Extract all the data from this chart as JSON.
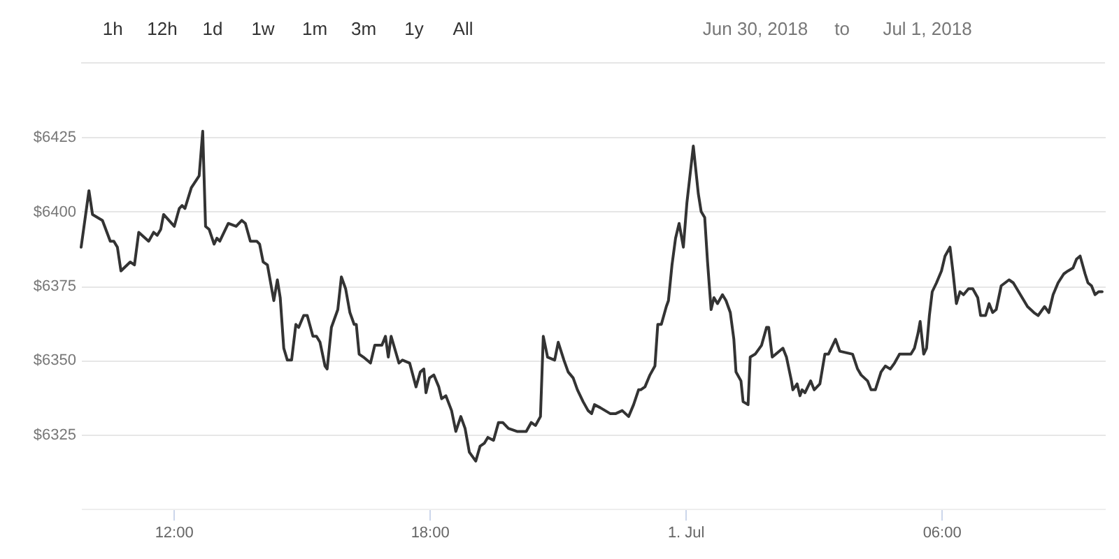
{
  "chart_data": {
    "type": "line",
    "annotations": [
      "1h",
      "12h",
      "1d",
      "1w",
      "1m",
      "3m",
      "1y",
      "All",
      "Jun 30, 2018",
      "to",
      "Jul 1, 2018"
    ],
    "x": [
      "2018-06-30T09:50",
      "2018-06-30T10:01",
      "2018-06-30T10:06",
      "2018-06-30T10:20",
      "2018-06-30T10:31",
      "2018-06-30T10:36",
      "2018-06-30T10:41",
      "2018-06-30T10:46",
      "2018-06-30T10:59",
      "2018-06-30T11:05",
      "2018-06-30T11:11",
      "2018-06-30T11:25",
      "2018-06-30T11:32",
      "2018-06-30T11:37",
      "2018-06-30T11:42",
      "2018-06-30T11:46",
      "2018-06-30T12:01",
      "2018-06-30T12:08",
      "2018-06-30T12:12",
      "2018-06-30T12:16",
      "2018-06-30T12:25",
      "2018-06-30T12:36",
      "2018-06-30T12:41",
      "2018-06-30T12:45",
      "2018-06-30T12:50",
      "2018-06-30T12:57",
      "2018-06-30T13:01",
      "2018-06-30T13:05",
      "2018-06-30T13:17",
      "2018-06-30T13:28",
      "2018-06-30T13:36",
      "2018-06-30T13:41",
      "2018-06-30T13:48",
      "2018-06-30T13:57",
      "2018-06-30T14:01",
      "2018-06-30T14:06",
      "2018-06-30T14:12",
      "2018-06-30T14:21",
      "2018-06-30T14:26",
      "2018-06-30T14:30",
      "2018-06-30T14:35",
      "2018-06-30T14:40",
      "2018-06-30T14:46",
      "2018-06-30T14:52",
      "2018-06-30T14:56",
      "2018-06-30T15:03",
      "2018-06-30T15:08",
      "2018-06-30T15:16",
      "2018-06-30T15:21",
      "2018-06-30T15:26",
      "2018-06-30T15:33",
      "2018-06-30T15:36",
      "2018-06-30T15:42",
      "2018-06-30T15:51",
      "2018-06-30T15:56",
      "2018-06-30T16:02",
      "2018-06-30T16:08",
      "2018-06-30T16:14",
      "2018-06-30T16:17",
      "2018-06-30T16:21",
      "2018-06-30T16:27",
      "2018-06-30T16:37",
      "2018-06-30T16:43",
      "2018-06-30T16:53",
      "2018-06-30T16:58",
      "2018-06-30T17:02",
      "2018-06-30T17:06",
      "2018-06-30T17:17",
      "2018-06-30T17:22",
      "2018-06-30T17:32",
      "2018-06-30T17:41",
      "2018-06-30T17:47",
      "2018-06-30T17:52",
      "2018-06-30T17:55",
      "2018-06-30T18:00",
      "2018-06-30T18:06",
      "2018-06-30T18:13",
      "2018-06-30T18:17",
      "2018-06-30T18:23",
      "2018-06-30T18:31",
      "2018-06-30T18:37",
      "2018-06-30T18:44",
      "2018-06-30T18:50",
      "2018-06-30T18:56",
      "2018-06-30T19:05",
      "2018-06-30T19:11",
      "2018-06-30T19:17",
      "2018-06-30T19:22",
      "2018-06-30T19:30",
      "2018-06-30T19:37",
      "2018-06-30T19:43",
      "2018-06-30T19:51",
      "2018-06-30T20:03",
      "2018-06-30T20:16",
      "2018-06-30T20:23",
      "2018-06-30T20:29",
      "2018-06-30T20:36",
      "2018-06-30T20:40",
      "2018-06-30T20:46",
      "2018-06-30T20:56",
      "2018-06-30T21:01",
      "2018-06-30T21:09",
      "2018-06-30T21:15",
      "2018-06-30T21:22",
      "2018-06-30T21:28",
      "2018-06-30T21:36",
      "2018-06-30T21:43",
      "2018-06-30T21:48",
      "2018-06-30T21:52",
      "2018-06-30T22:00",
      "2018-06-30T22:14",
      "2018-06-30T22:22",
      "2018-06-30T22:31",
      "2018-06-30T22:40",
      "2018-06-30T22:47",
      "2018-06-30T22:54",
      "2018-06-30T22:57",
      "2018-06-30T23:03",
      "2018-06-30T23:10",
      "2018-06-30T23:17",
      "2018-06-30T23:21",
      "2018-06-30T23:26",
      "2018-06-30T23:33",
      "2018-06-30T23:36",
      "2018-06-30T23:41",
      "2018-06-30T23:46",
      "2018-06-30T23:51",
      "2018-06-30T23:57",
      "2018-07-01T00:02",
      "2018-07-01T00:11",
      "2018-07-01T00:18",
      "2018-07-01T00:22",
      "2018-07-01T00:27",
      "2018-07-01T00:31",
      "2018-07-01T00:36",
      "2018-07-01T00:40",
      "2018-07-01T00:45",
      "2018-07-01T00:52",
      "2018-07-01T00:57",
      "2018-07-01T01:03",
      "2018-07-01T01:08",
      "2018-07-01T01:11",
      "2018-07-01T01:18",
      "2018-07-01T01:21",
      "2018-07-01T01:28",
      "2018-07-01T01:31",
      "2018-07-01T01:38",
      "2018-07-01T01:47",
      "2018-07-01T01:54",
      "2018-07-01T01:57",
      "2018-07-01T02:02",
      "2018-07-01T02:17",
      "2018-07-01T02:22",
      "2018-07-01T02:29",
      "2018-07-01T02:31",
      "2018-07-01T02:37",
      "2018-07-01T02:41",
      "2018-07-01T02:44",
      "2018-07-01T02:48",
      "2018-07-01T02:56",
      "2018-07-01T03:01",
      "2018-07-01T03:09",
      "2018-07-01T03:16",
      "2018-07-01T03:21",
      "2018-07-01T03:31",
      "2018-07-01T03:37",
      "2018-07-01T03:55",
      "2018-07-01T04:02",
      "2018-07-01T04:07",
      "2018-07-01T04:16",
      "2018-07-01T04:21",
      "2018-07-01T04:27",
      "2018-07-01T04:35",
      "2018-07-01T04:41",
      "2018-07-01T04:48",
      "2018-07-01T04:54",
      "2018-07-01T05:01",
      "2018-07-01T05:17",
      "2018-07-01T05:22",
      "2018-07-01T05:27",
      "2018-07-01T05:30",
      "2018-07-01T05:35",
      "2018-07-01T05:39",
      "2018-07-01T05:43",
      "2018-07-01T05:47",
      "2018-07-01T05:53",
      "2018-07-01T06:00",
      "2018-07-01T06:05",
      "2018-07-01T06:12",
      "2018-07-01T06:16",
      "2018-07-01T06:21",
      "2018-07-01T06:26",
      "2018-07-01T06:31",
      "2018-07-01T06:38",
      "2018-07-01T06:44",
      "2018-07-01T06:51",
      "2018-07-01T06:55",
      "2018-07-01T07:02",
      "2018-07-01T07:07",
      "2018-07-01T07:12",
      "2018-07-01T07:17",
      "2018-07-01T07:24",
      "2018-07-01T07:35",
      "2018-07-01T07:41",
      "2018-07-01T07:51",
      "2018-07-01T08:01",
      "2018-07-01T08:10",
      "2018-07-01T08:16",
      "2018-07-01T08:25",
      "2018-07-01T08:31",
      "2018-07-01T08:37",
      "2018-07-01T08:44",
      "2018-07-01T08:52",
      "2018-07-01T08:58",
      "2018-07-01T09:05",
      "2018-07-01T09:10",
      "2018-07-01T09:15",
      "2018-07-01T09:22",
      "2018-07-01T09:26",
      "2018-07-01T09:31",
      "2018-07-01T09:36",
      "2018-07-01T09:41",
      "2018-07-01T09:46"
    ],
    "series": [
      {
        "color": "#333333",
        "values": [
          6388,
          6407,
          6399,
          6397,
          6390,
          6390,
          6388,
          6380,
          6383,
          6382,
          6393,
          6390,
          6393,
          6392,
          6394,
          6399,
          6395,
          6401,
          6402,
          6401,
          6408,
          6412,
          6427,
          6395,
          6394,
          6389,
          6391,
          6390,
          6396,
          6395,
          6397,
          6396,
          6390,
          6390,
          6389,
          6383,
          6382,
          6370,
          6377,
          6371,
          6354,
          6350,
          6350,
          6362,
          6361,
          6365,
          6365,
          6358,
          6358,
          6356,
          6348,
          6347,
          6361,
          6367,
          6378,
          6374,
          6366,
          6362,
          6362,
          6352,
          6351,
          6349,
          6355,
          6355,
          6358,
          6351,
          6358,
          6349,
          6350,
          6349,
          6341,
          6346,
          6347,
          6339,
          6344,
          6345,
          6341,
          6337,
          6338,
          6333,
          6326,
          6331,
          6327,
          6319,
          6316,
          6321,
          6322,
          6324,
          6323,
          6329,
          6329,
          6327,
          6326,
          6326,
          6329,
          6328,
          6331,
          6358,
          6351,
          6350,
          6356,
          6350,
          6346,
          6344,
          6340,
          6336,
          6333,
          6332,
          6335,
          6334,
          6332,
          6332,
          6333,
          6331,
          6335,
          6340,
          6340,
          6341,
          6345,
          6348,
          6362,
          6362,
          6368,
          6370,
          6382,
          6391,
          6396,
          6388,
          6403,
          6422,
          6406,
          6400,
          6398,
          6383,
          6367,
          6371,
          6369,
          6372,
          6370,
          6366,
          6357,
          6346,
          6343,
          6336,
          6335,
          6351,
          6352,
          6355,
          6361,
          6361,
          6351,
          6354,
          6351,
          6343,
          6340,
          6342,
          6338,
          6340,
          6339,
          6343,
          6340,
          6342,
          6352,
          6352,
          6357,
          6353,
          6352,
          6347,
          6345,
          6343,
          6340,
          6340,
          6346,
          6348,
          6347,
          6349,
          6352,
          6352,
          6354,
          6359,
          6363,
          6352,
          6354,
          6365,
          6373,
          6376,
          6380,
          6385,
          6388,
          6380,
          6369,
          6373,
          6372,
          6374,
          6374,
          6371,
          6365,
          6365,
          6369,
          6366,
          6367,
          6375,
          6377,
          6376,
          6372,
          6368,
          6366,
          6365,
          6368,
          6366,
          6372,
          6376,
          6379,
          6380,
          6381,
          6384,
          6385,
          6379,
          6376,
          6375,
          6372,
          6373,
          6373
        ]
      }
    ],
    "xlim": [
      "2018-06-30T09:50",
      "2018-07-01T09:50"
    ],
    "xticks": [
      {
        "value": "2018-06-30T12:00",
        "label": "12:00"
      },
      {
        "value": "2018-06-30T18:00",
        "label": "18:00"
      },
      {
        "value": "2018-07-01T00:00",
        "label": "1. Jul"
      },
      {
        "value": "2018-07-01T06:00",
        "label": "06:00"
      }
    ],
    "ylim": [
      6300,
      6450
    ],
    "yticks": [
      {
        "value": 6325,
        "label": "$6325"
      },
      {
        "value": 6350,
        "label": "$6350"
      },
      {
        "value": 6375,
        "label": "$6375"
      },
      {
        "value": 6400,
        "label": "$6400"
      },
      {
        "value": 6425,
        "label": "$6425"
      }
    ],
    "grid": "y"
  }
}
